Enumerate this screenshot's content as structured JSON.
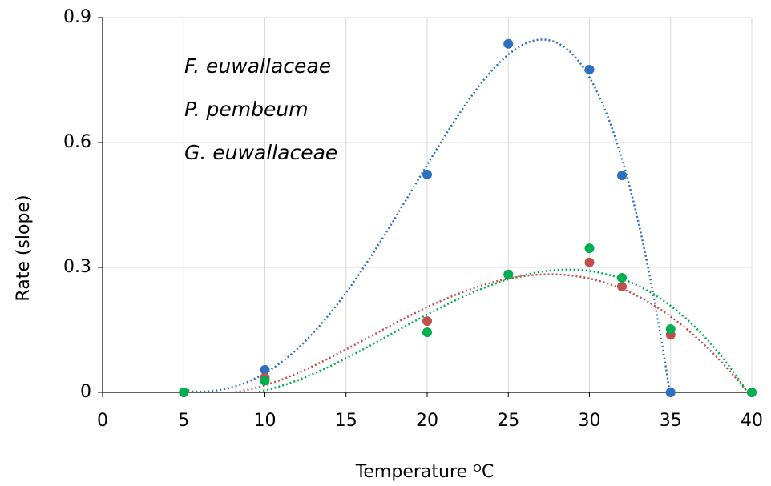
{
  "chart_data": {
    "type": "scatter",
    "x_label": "Temperature ᴼC",
    "y_label": "Rate (slope)",
    "x": [
      5,
      10,
      20,
      25,
      30,
      32,
      35,
      40
    ],
    "series": [
      {
        "name": "F. euwallaceae",
        "color": "#2e6fc0",
        "values": [
          0,
          0.054,
          0.523,
          0.837,
          0.775,
          0.521,
          0,
          null
        ]
      },
      {
        "name": "P. pembeum",
        "color": "#c0504d",
        "values": [
          0,
          0.035,
          0.171,
          0.283,
          0.312,
          0.254,
          0.138,
          0
        ]
      },
      {
        "name": "G. euwallaceae",
        "color": "#00b050",
        "values": [
          0,
          0.028,
          0.144,
          0.283,
          0.346,
          0.275,
          0.152,
          0
        ]
      }
    ],
    "xlim": [
      0,
      40
    ],
    "xticks": [
      0,
      5,
      10,
      15,
      20,
      25,
      30,
      35,
      40
    ],
    "ylim": [
      0,
      0.9
    ],
    "yticks": [
      0,
      0.3,
      0.6,
      0.9
    ],
    "grid": true,
    "trendline": "polynomial",
    "trendline_order": 4
  }
}
